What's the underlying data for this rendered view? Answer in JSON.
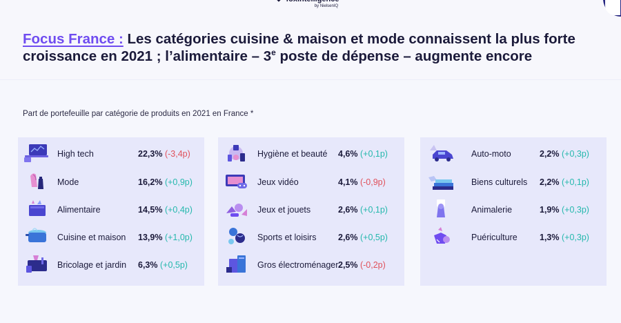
{
  "header": {
    "logo_text": "foxintelligence",
    "logo_sub": "by NielsenIQ",
    "title_accent": "Focus France :",
    "title_part1": " Les catégories cuisine & maison et mode connaissent la plus forte croissance en 2021 ; l’alimentaire – 3",
    "title_sup": "e",
    "title_part2": " poste de dépense – augmente encore"
  },
  "subtitle": "Part de portefeuille par catégorie de produits en 2021 en France *",
  "colors": {
    "positive": "#25b8ad",
    "negative": "#e0505a",
    "accent": "#6f4cf0",
    "panel": "#e7e8fb"
  },
  "panels": [
    {
      "items": [
        {
          "label": "High tech",
          "share": "22,3%",
          "delta": "(-3,4p)",
          "trend": "neg",
          "icon": "laptop-icon"
        },
        {
          "label": "Mode",
          "share": "16,2%",
          "delta": "(+0,9p)",
          "trend": "pos",
          "icon": "clothing-icon"
        },
        {
          "label": "Alimentaire",
          "share": "14,5%",
          "delta": "(+0,4p)",
          "trend": "pos",
          "icon": "grocery-basket-icon"
        },
        {
          "label": "Cuisine et maison",
          "share": "13,9%",
          "delta": "(+1,0p)",
          "trend": "pos",
          "icon": "cooking-pot-icon"
        },
        {
          "label": "Bricolage et jardin",
          "share": "6,3%",
          "delta": "(+0,5p)",
          "trend": "pos",
          "icon": "toolbox-icon"
        }
      ]
    },
    {
      "items": [
        {
          "label": "Hygiène et beauté",
          "share": "4,6%",
          "delta": "(+0,1p)",
          "trend": "pos",
          "icon": "beauty-products-icon"
        },
        {
          "label": "Jeux vidéo",
          "share": "4,1%",
          "delta": "(-0,9p)",
          "trend": "neg",
          "icon": "game-controller-icon"
        },
        {
          "label": "Jeux et jouets",
          "share": "2,6%",
          "delta": "(+0,1p)",
          "trend": "pos",
          "icon": "toys-icon"
        },
        {
          "label": "Sports et loisirs",
          "share": "2,6%",
          "delta": "(+0,5p)",
          "trend": "pos",
          "icon": "sports-balls-icon"
        },
        {
          "label": "Gros électroménager",
          "share": "2,5%",
          "delta": "(-0,2p)",
          "trend": "neg",
          "icon": "appliance-icon"
        }
      ]
    },
    {
      "items": [
        {
          "label": "Auto-moto",
          "share": "2,2%",
          "delta": "(+0,3p)",
          "trend": "pos",
          "icon": "car-icon"
        },
        {
          "label": "Biens culturels",
          "share": "2,2%",
          "delta": "(+0,1p)",
          "trend": "pos",
          "icon": "books-icon"
        },
        {
          "label": "Animalerie",
          "share": "1,9%",
          "delta": "(+0,3p)",
          "trend": "pos",
          "icon": "pet-icon"
        },
        {
          "label": "Puériculture",
          "share": "1,3%",
          "delta": "(+0,3p)",
          "trend": "pos",
          "icon": "baby-icon"
        }
      ]
    }
  ]
}
